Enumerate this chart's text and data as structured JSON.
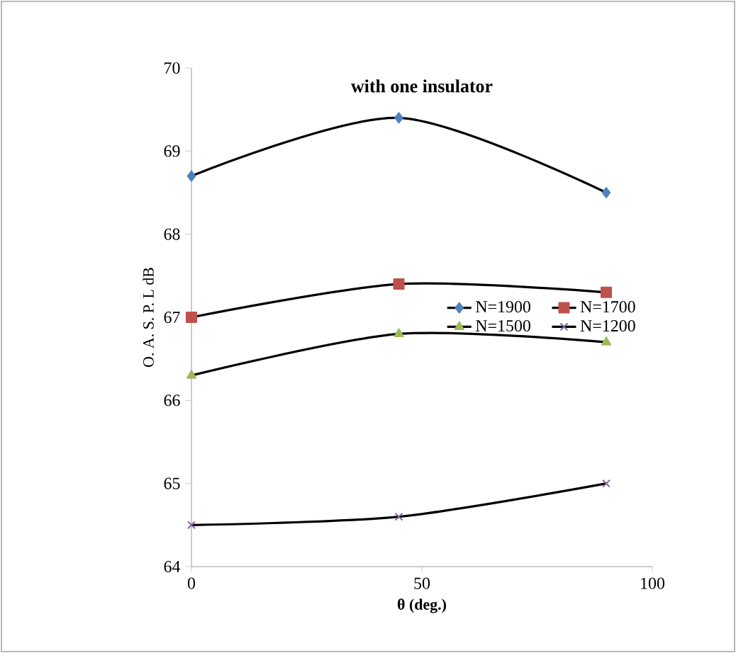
{
  "chart_data": {
    "type": "line",
    "title": "with one insulator",
    "xlabel": "θ (deg.)",
    "ylabel": "O. A. S. P. L  dB",
    "x": [
      0,
      45,
      90
    ],
    "series": [
      {
        "name": "N=1900",
        "color": "#4f81bd",
        "marker": "diamond",
        "values": [
          68.7,
          69.4,
          68.5
        ]
      },
      {
        "name": "N=1700",
        "color": "#c0504d",
        "marker": "square",
        "values": [
          67.0,
          67.4,
          67.3
        ]
      },
      {
        "name": "N=1500",
        "color": "#9bbb59",
        "marker": "triangle",
        "values": [
          66.3,
          66.8,
          66.7
        ]
      },
      {
        "name": "N=1200",
        "color": "#8064a2",
        "marker": "cross",
        "values": [
          64.5,
          64.6,
          65.0
        ]
      }
    ],
    "xlim": [
      0,
      100
    ],
    "xticks": [
      0,
      50,
      100
    ],
    "ylim": [
      64,
      70
    ],
    "yticks": [
      64,
      65,
      66,
      67,
      68,
      69,
      70
    ],
    "legend": "right",
    "grid": false
  }
}
